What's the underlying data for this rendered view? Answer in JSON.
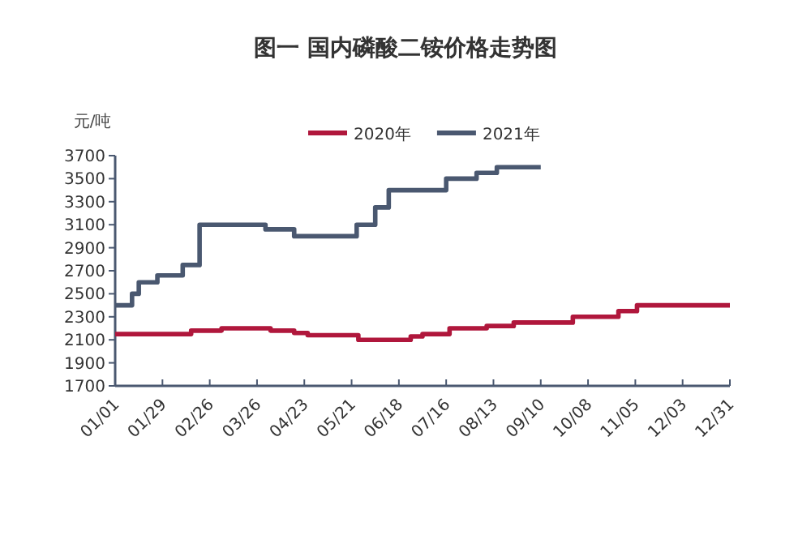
{
  "chart_data": {
    "type": "step",
    "title": "图一  国内磷酸二铵价格走势图",
    "ylabel": "元/吨",
    "legend": "top",
    "grid": false,
    "xlim": [
      "--01-01",
      "--12-31"
    ],
    "xticks": [
      {
        "value": "--01-01",
        "label": "01/01"
      },
      {
        "value": "--01-29",
        "label": "01/29"
      },
      {
        "value": "--02-26",
        "label": "02/26"
      },
      {
        "value": "--03-26",
        "label": "03/26"
      },
      {
        "value": "--04-23",
        "label": "04/23"
      },
      {
        "value": "--05-21",
        "label": "05/21"
      },
      {
        "value": "--06-18",
        "label": "06/18"
      },
      {
        "value": "--07-16",
        "label": "07/16"
      },
      {
        "value": "--08-13",
        "label": "08/13"
      },
      {
        "value": "--09-10",
        "label": "09/10"
      },
      {
        "value": "--10-08",
        "label": "10/08"
      },
      {
        "value": "--11-05",
        "label": "11/05"
      },
      {
        "value": "--12-03",
        "label": "12/03"
      },
      {
        "value": "--12-31",
        "label": "12/31"
      }
    ],
    "ylim": [
      1700,
      3700
    ],
    "yticks": [
      1700,
      1900,
      2100,
      2300,
      2500,
      2700,
      2900,
      3100,
      3300,
      3500,
      3700
    ],
    "series": [
      {
        "name": "2020年",
        "color": "#b0173c",
        "x": [
          "--01-01",
          "--02-15",
          "--03-05",
          "--04-03",
          "--04-17",
          "--04-25",
          "--05-25",
          "--06-25",
          "--07-02",
          "--07-18",
          "--08-09",
          "--08-25",
          "--09-29",
          "--10-26",
          "--11-06",
          "--12-31"
        ],
        "values": [
          2150,
          2180,
          2200,
          2180,
          2160,
          2140,
          2100,
          2130,
          2150,
          2200,
          2220,
          2250,
          2300,
          2350,
          2400,
          2400
        ]
      },
      {
        "name": "2021年",
        "color": "#4a5870",
        "x": [
          "--01-01",
          "--01-11",
          "--01-15",
          "--01-26",
          "--02-10",
          "--02-20",
          "--03-31",
          "--04-17",
          "--05-24",
          "--06-04",
          "--06-12",
          "--07-16",
          "--08-03",
          "--08-15",
          "--09-10"
        ],
        "values": [
          2400,
          2500,
          2600,
          2660,
          2750,
          3100,
          3060,
          3000,
          3100,
          3250,
          3400,
          3500,
          3550,
          3600,
          3600
        ]
      }
    ]
  }
}
